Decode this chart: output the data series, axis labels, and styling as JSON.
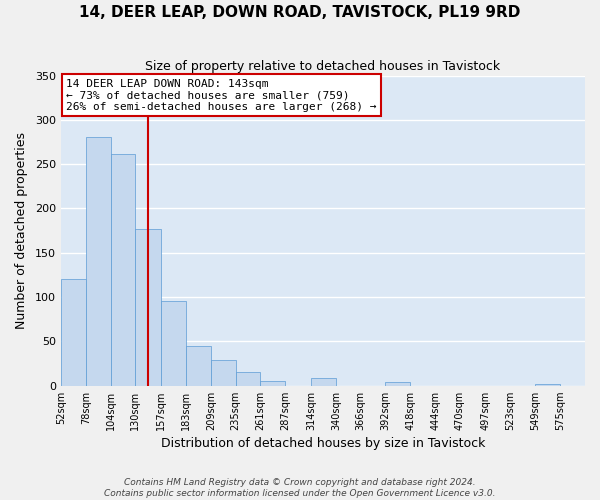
{
  "title": "14, DEER LEAP, DOWN ROAD, TAVISTOCK, PL19 9RD",
  "subtitle": "Size of property relative to detached houses in Tavistock",
  "xlabel": "Distribution of detached houses by size in Tavistock",
  "ylabel": "Number of detached properties",
  "bar_edges": [
    52,
    78,
    104,
    130,
    157,
    183,
    209,
    235,
    261,
    287,
    314,
    340,
    366,
    392,
    418,
    444,
    470,
    497,
    523,
    549,
    575
  ],
  "bar_heights": [
    120,
    281,
    262,
    177,
    96,
    45,
    29,
    16,
    5,
    0,
    9,
    0,
    0,
    4,
    0,
    0,
    0,
    0,
    0,
    2
  ],
  "bar_color": "#c5d8ee",
  "bar_edge_color": "#5b9bd5",
  "property_line_x": 143,
  "property_line_color": "#cc0000",
  "annotation_line1": "14 DEER LEAP DOWN ROAD: 143sqm",
  "annotation_line2": "← 73% of detached houses are smaller (759)",
  "annotation_line3": "26% of semi-detached houses are larger (268) →",
  "annotation_box_color": "#ffffff",
  "annotation_box_edge_color": "#cc0000",
  "ylim": [
    0,
    350
  ],
  "yticks": [
    0,
    50,
    100,
    150,
    200,
    250,
    300,
    350
  ],
  "tick_labels": [
    "52sqm",
    "78sqm",
    "104sqm",
    "130sqm",
    "157sqm",
    "183sqm",
    "209sqm",
    "235sqm",
    "261sqm",
    "287sqm",
    "314sqm",
    "340sqm",
    "366sqm",
    "392sqm",
    "418sqm",
    "444sqm",
    "470sqm",
    "497sqm",
    "523sqm",
    "549sqm",
    "575sqm"
  ],
  "footer_line1": "Contains HM Land Registry data © Crown copyright and database right 2024.",
  "footer_line2": "Contains public sector information licensed under the Open Government Licence v3.0.",
  "grid_color": "#ffffff",
  "bg_color": "#dce8f5",
  "fig_bg_color": "#f0f0f0",
  "title_fontsize": 11,
  "subtitle_fontsize": 9,
  "xlabel_fontsize": 9,
  "ylabel_fontsize": 9,
  "tick_fontsize": 7,
  "annotation_fontsize": 8,
  "footer_fontsize": 6.5
}
